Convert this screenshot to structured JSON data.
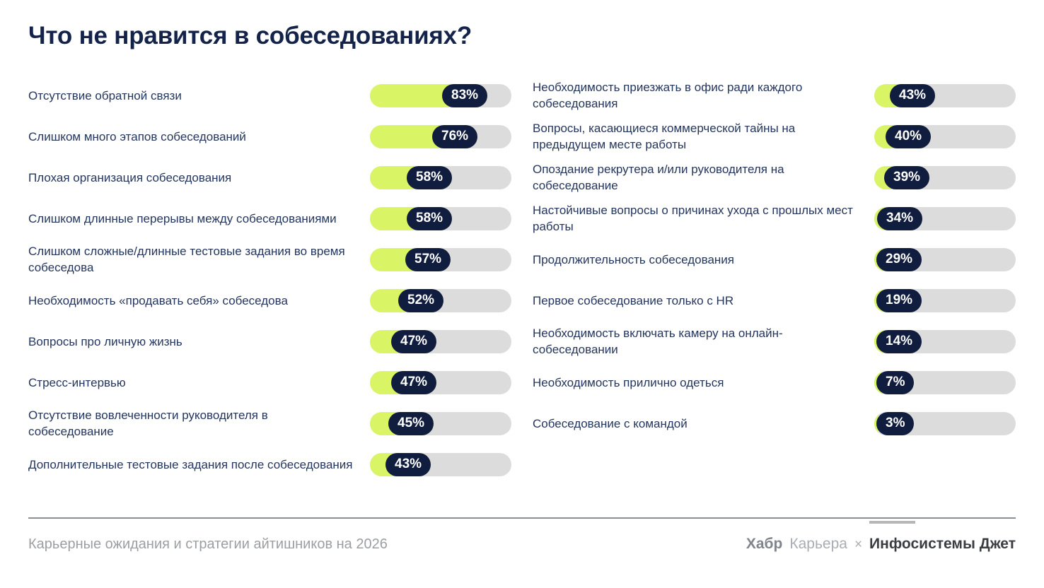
{
  "title": "Что не нравится в собеседованиях?",
  "chart_data": {
    "type": "bar",
    "orientation": "horizontal",
    "unit": "%",
    "xlim": [
      0,
      100
    ],
    "grid": false,
    "legend": false,
    "columns": [
      {
        "items": [
          {
            "label": "Отсутствие обратной связи",
            "value": 83,
            "display": "83%"
          },
          {
            "label": "Слишком много этапов собеседований",
            "value": 76,
            "display": "76%"
          },
          {
            "label": "Плохая организация собеседования",
            "value": 58,
            "display": "58%"
          },
          {
            "label": "Слишком длинные перерывы между собеседованиями",
            "value": 58,
            "display": "58%"
          },
          {
            "label": "Слишком сложные/длинные тестовые задания во время собеседова",
            "value": 57,
            "display": "57%"
          },
          {
            "label": "Необходимость «продавать себя» собеседова",
            "value": 52,
            "display": "52%"
          },
          {
            "label": "Вопросы про личную жизнь",
            "value": 47,
            "display": "47%"
          },
          {
            "label": "Стресс-интервью",
            "value": 47,
            "display": "47%"
          },
          {
            "label": "Отсутствие вовлеченности руководителя в собеседование",
            "value": 45,
            "display": "45%"
          },
          {
            "label": "Дополнительные тестовые задания после собеседования",
            "value": 43,
            "display": "43%"
          }
        ]
      },
      {
        "items": [
          {
            "label": "Необходимость приезжать в офис ради каждого собеседования",
            "value": 43,
            "display": "43%"
          },
          {
            "label": "Вопросы, касающиеся коммерческой тайны на предыдущем месте работы",
            "value": 40,
            "display": "40%"
          },
          {
            "label": "Опоздание рекрутера и/или руководителя на собеседование",
            "value": 39,
            "display": "39%"
          },
          {
            "label": "Настойчивые вопросы о причинах ухода с прошлых мест работы",
            "value": 34,
            "display": "34%"
          },
          {
            "label": "Продолжительность собеседования",
            "value": 29,
            "display": "29%"
          },
          {
            "label": "Первое собеседование только с HR",
            "value": 19,
            "display": "19%"
          },
          {
            "label": "Необходимость включать камеру на онлайн-собеседовании",
            "value": 14,
            "display": "14%"
          },
          {
            "label": "Необходимость прилично одеться",
            "value": 7,
            "display": "7%"
          },
          {
            "label": "Собеседование с командой",
            "value": 3,
            "display": "3%"
          }
        ]
      }
    ]
  },
  "footer": {
    "source": "Карьерные ожидания и стратегии айтишников на 2026",
    "brand_habr_bold": "Хабр",
    "brand_habr_light": "Карьера",
    "separator": "×",
    "brand_jet": "Инфосистемы Джет"
  },
  "colors": {
    "bg": "#ffffff",
    "title": "#14234a",
    "label": "#25365c",
    "fill": "#d9f566",
    "track": "#dcdcdc",
    "badge-bg": "#101d3f",
    "badge-text": "#ffffff",
    "divider": "#8b8f94",
    "footer-text": "#9b9fa3",
    "habr-bold": "#7e858d",
    "habr-light": "#a8aeb4",
    "jet-text": "#3a3e43",
    "jet-line": "#b7b7b7"
  }
}
